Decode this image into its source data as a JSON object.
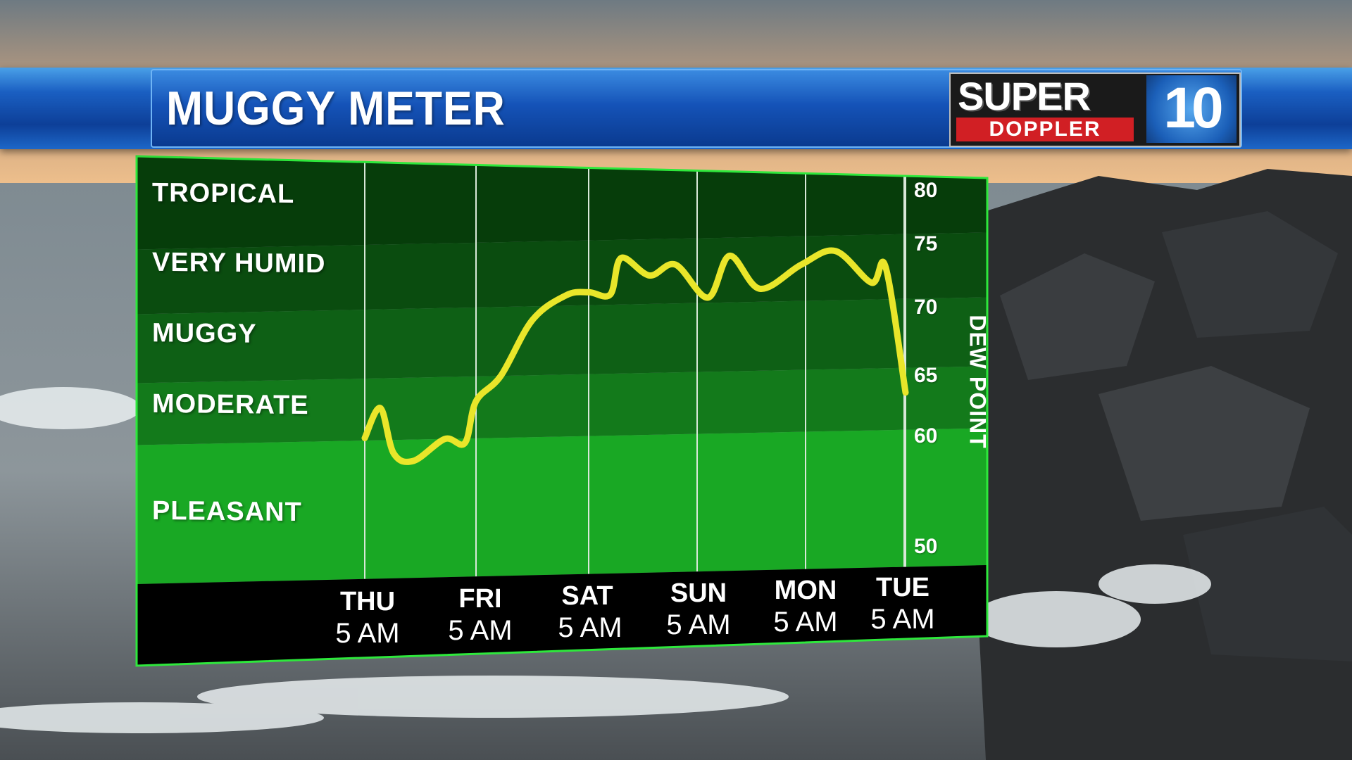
{
  "title": "MUGGY METER",
  "logo": {
    "line1": "SUPER",
    "line2": "DOPPLER",
    "mark": "10"
  },
  "colors": {
    "banner": "#1553b8",
    "band_tropical": "#063d0a",
    "band_very_humid": "#0a4c0f",
    "band_muggy": "#0e6015",
    "band_moderate": "#137a1b",
    "band_pleasant": "#19a824",
    "line": "#e9e62a",
    "border": "#2ee83c"
  },
  "chart_data": {
    "type": "line",
    "title": "MUGGY METER",
    "ylabel": "DEW POINT",
    "ylim": [
      50,
      80
    ],
    "yticks": [
      80,
      75,
      70,
      65,
      60,
      50
    ],
    "categories": [
      {
        "day": "THU",
        "time": "5 AM"
      },
      {
        "day": "FRI",
        "time": "5 AM"
      },
      {
        "day": "SAT",
        "time": "5 AM"
      },
      {
        "day": "SUN",
        "time": "5 AM"
      },
      {
        "day": "MON",
        "time": "5 AM"
      },
      {
        "day": "TUE",
        "time": "5 AM"
      }
    ],
    "bands": [
      {
        "label": "TROPICAL",
        "from": 75,
        "to": 80
      },
      {
        "label": "VERY HUMID",
        "from": 70,
        "to": 75
      },
      {
        "label": "MUGGY",
        "from": 65,
        "to": 70
      },
      {
        "label": "MODERATE",
        "from": 60,
        "to": 65
      },
      {
        "label": "PLEASANT",
        "from": 50,
        "to": 60
      }
    ],
    "series": [
      {
        "x": [
          0,
          0.14,
          0.26,
          0.44,
          0.72,
          0.9,
          1.0,
          1.22,
          1.5,
          1.8,
          2.0,
          2.2,
          2.3,
          2.56,
          2.8,
          3.1,
          3.3,
          3.58,
          3.96,
          4.3,
          4.66,
          4.8,
          5.0
        ],
        "values": [
          60.2,
          62.6,
          58.8,
          58.1,
          60.0,
          59.6,
          63.0,
          65.0,
          69.0,
          70.8,
          71.0,
          70.8,
          73.6,
          72.2,
          73.0,
          70.4,
          73.6,
          71.0,
          72.8,
          73.8,
          71.3,
          72.5,
          63.0
        ]
      }
    ]
  }
}
